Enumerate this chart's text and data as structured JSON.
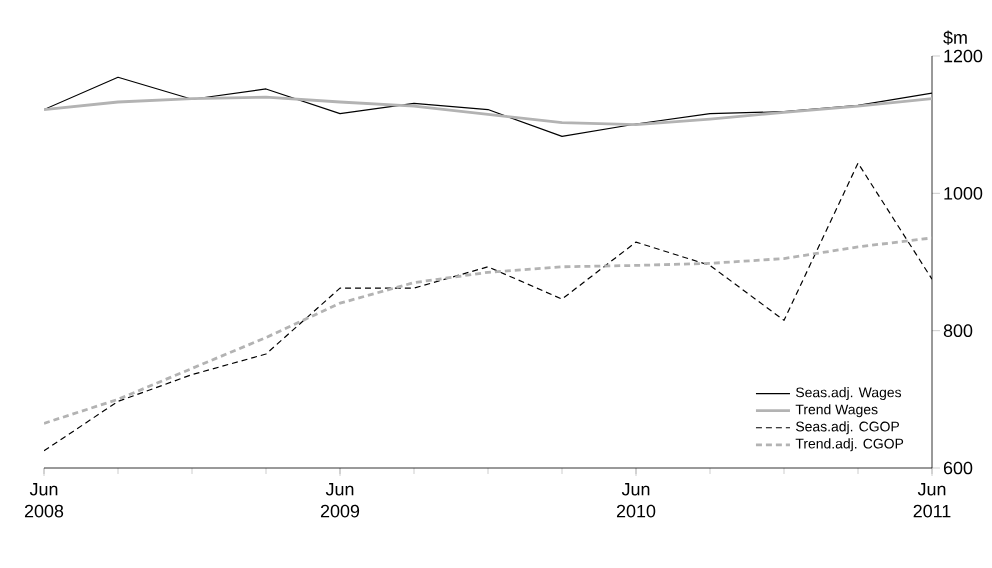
{
  "chart_data": {
    "type": "line",
    "ylabel": "$m",
    "x": [
      "2008-06",
      "2008-09",
      "2008-12",
      "2009-03",
      "2009-06",
      "2009-09",
      "2009-12",
      "2010-03",
      "2010-06",
      "2010-09",
      "2010-12",
      "2011-03",
      "2011-06"
    ],
    "series": [
      {
        "name": "Seas.adj. Wages",
        "color": "#000000",
        "line_style": "solid",
        "values": [
          1122,
          1169,
          1137,
          1152,
          1116,
          1131,
          1122,
          1083,
          1101,
          1116,
          1119,
          1128,
          1146
        ]
      },
      {
        "name": "Trend Wages",
        "color": "#b3b3b3",
        "line_style": "solid",
        "values": [
          1122,
          1133,
          1138,
          1140,
          1133,
          1127,
          1115,
          1103,
          1100,
          1108,
          1118,
          1127,
          1138
        ]
      },
      {
        "name": "Seas.adj. CGOP",
        "color": "#000000",
        "line_style": "dashed",
        "values": [
          625,
          697,
          736,
          766,
          862,
          862,
          893,
          846,
          929,
          895,
          815,
          1044,
          875
        ]
      },
      {
        "name": "Trend.adj. CGOP",
        "color": "#b3b3b3",
        "line_style": "dashed",
        "values": [
          665,
          700,
          745,
          790,
          840,
          870,
          885,
          893,
          895,
          898,
          905,
          922,
          935
        ]
      }
    ],
    "xlim": [
      "2008-06",
      "2011-06"
    ],
    "xticks": [
      {
        "value": "2008-06",
        "label": "Jun 2008"
      },
      {
        "value": "2009-06",
        "label": "Jun 2009"
      },
      {
        "value": "2010-06",
        "label": "Jun 2010"
      },
      {
        "value": "2011-06",
        "label": "Jun 2011"
      }
    ],
    "ylim": [
      600,
      1200
    ],
    "yticks": [
      600,
      800,
      1000,
      1200
    ],
    "grid": false,
    "legend": "bottom right",
    "marker": "none"
  }
}
